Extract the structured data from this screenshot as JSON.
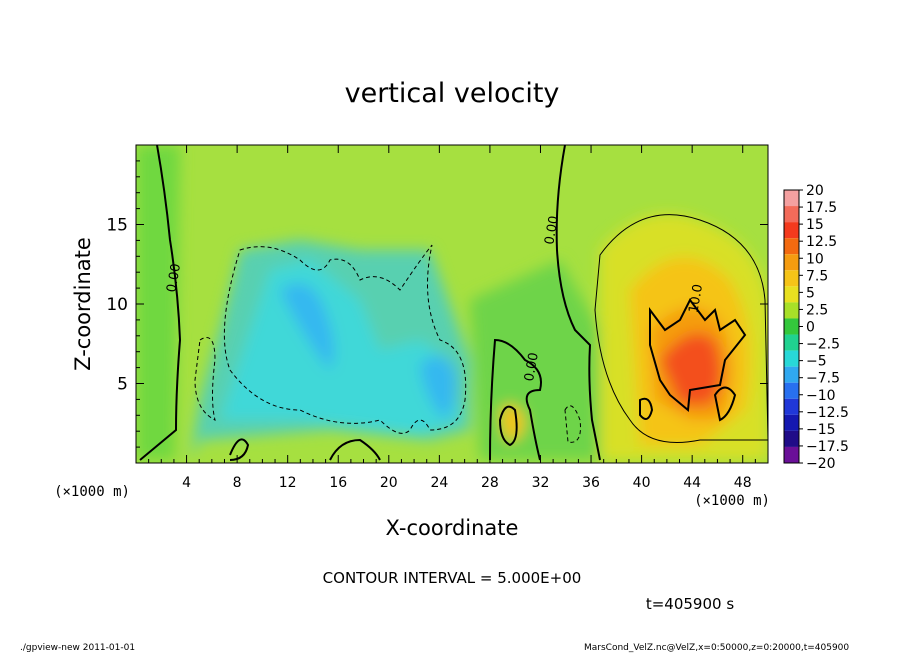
{
  "chart_data": {
    "type": "heatmap",
    "title": "vertical velocity",
    "xlabel": "X-coordinate",
    "ylabel": "Z-coordinate",
    "x_unit": "(×1000 m)",
    "y_unit": "(×1000 m)",
    "xlim": [
      0,
      50
    ],
    "ylim": [
      0,
      20
    ],
    "x_ticks": [
      4,
      8,
      12,
      16,
      20,
      24,
      28,
      32,
      36,
      40,
      44,
      48
    ],
    "y_ticks": [
      5,
      10,
      15
    ],
    "colorbar": {
      "levels": [
        20,
        17.5,
        15,
        12.5,
        10,
        7.5,
        5,
        2.5,
        0,
        -2.5,
        -5,
        -7.5,
        -10,
        -12.5,
        -15,
        -17.5,
        -20
      ],
      "labels": [
        "20",
        "17.5",
        "15",
        "12.5",
        "10",
        "7.5",
        "5",
        "2.5",
        "0",
        "−2.5",
        "−5",
        "−7.5",
        "−10",
        "−12.5",
        "−15",
        "−17.5",
        "−20"
      ],
      "colors": [
        "#f4a0a0",
        "#f36b5a",
        "#f43a1d",
        "#f36a10",
        "#f59c10",
        "#f5c418",
        "#e8e020",
        "#a8e028",
        "#34c83c",
        "#20d290",
        "#28d8d8",
        "#30a8f0",
        "#2870f0",
        "#2038d8",
        "#1418b0",
        "#200c88",
        "#6a1098"
      ]
    },
    "contour_labels": [
      {
        "text": "0.00",
        "x": 3.3,
        "y": 11.6
      },
      {
        "text": "0.00",
        "x": 33.2,
        "y": 14.6
      },
      {
        "text": "0.00",
        "x": 31.6,
        "y": 6.0
      },
      {
        "text": "10.0",
        "x": 44.6,
        "y": 10.3
      }
    ],
    "annotations": {
      "contour_interval": "CONTOUR INTERVAL = 5.000E+00",
      "time": "t=405900 s"
    }
  },
  "footer": {
    "left": "./gpview-new   2011-01-01",
    "right": "MarsCond_VelZ.nc@VelZ,x=0:50000,z=0:20000,t=405900"
  }
}
